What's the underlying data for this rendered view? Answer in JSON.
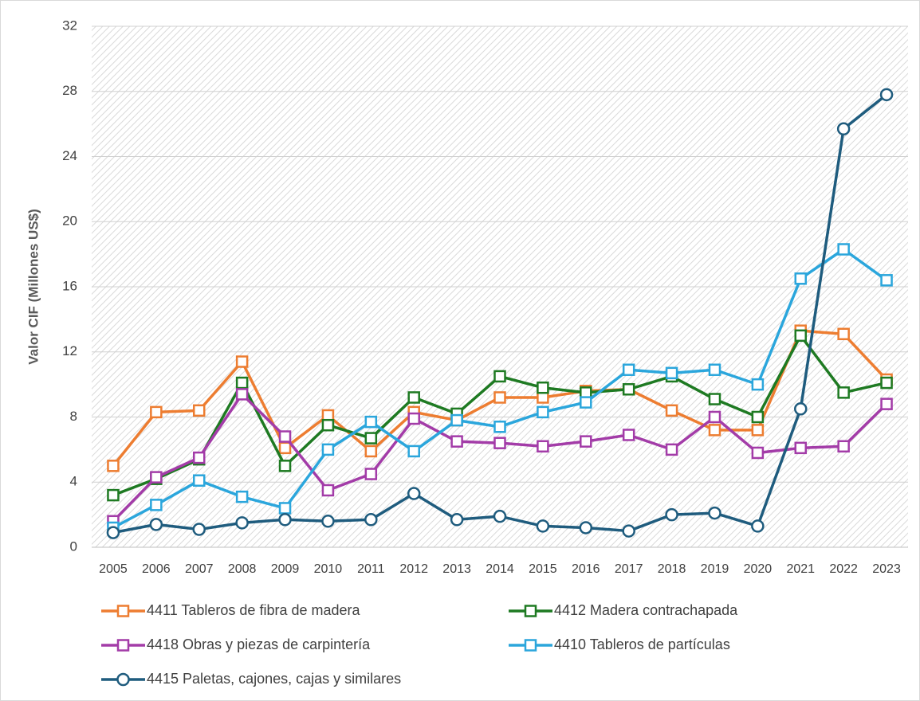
{
  "chart_data": {
    "type": "line",
    "y_axis_label": "Valor CIF (Millones US$)",
    "categories": [
      "2005",
      "2006",
      "2007",
      "2008",
      "2009",
      "2010",
      "2011",
      "2012",
      "2013",
      "2014",
      "2015",
      "2016",
      "2017",
      "2018",
      "2019",
      "2020",
      "2021",
      "2022",
      "2023"
    ],
    "ylim": [
      0,
      32
    ],
    "yticks": [
      0,
      4,
      8,
      12,
      16,
      20,
      24,
      28,
      32
    ],
    "grid": true,
    "series": [
      {
        "name": "4411 Tableros de fibra de madera",
        "color": "#ed7d31",
        "marker": "square",
        "values": [
          5.0,
          8.3,
          8.4,
          11.4,
          6.1,
          8.1,
          5.9,
          8.3,
          7.8,
          9.2,
          9.2,
          9.6,
          9.7,
          8.4,
          7.2,
          7.2,
          13.3,
          13.1,
          10.3
        ]
      },
      {
        "name": "4412 Madera contrachapada",
        "color": "#1e7a22",
        "marker": "square",
        "values": [
          3.2,
          4.2,
          5.4,
          10.1,
          5.0,
          7.5,
          6.7,
          9.2,
          8.2,
          10.5,
          9.8,
          9.5,
          9.7,
          10.5,
          9.1,
          8.0,
          13.0,
          9.5,
          10.1
        ]
      },
      {
        "name": "4418 Obras y piezas de carpintería",
        "color": "#a33ca8",
        "marker": "square",
        "values": [
          1.6,
          4.3,
          5.5,
          9.4,
          6.8,
          3.5,
          4.5,
          7.9,
          6.5,
          6.4,
          6.2,
          6.5,
          6.9,
          6.0,
          8.0,
          5.8,
          6.1,
          6.2,
          8.8
        ]
      },
      {
        "name": "4410 Tableros de partículas",
        "color": "#2ba6dc",
        "marker": "square",
        "values": [
          1.2,
          2.6,
          4.1,
          3.1,
          2.4,
          6.0,
          7.7,
          5.9,
          7.8,
          7.4,
          8.3,
          8.9,
          10.9,
          10.7,
          10.9,
          10.0,
          16.5,
          18.3,
          16.4
        ]
      },
      {
        "name": "4415 Paletas, cajones, cajas y similares",
        "color": "#1f5c7e",
        "marker": "circle",
        "values": [
          0.9,
          1.4,
          1.1,
          1.5,
          1.7,
          1.6,
          1.7,
          3.3,
          1.7,
          1.9,
          1.3,
          1.2,
          1.0,
          2.0,
          2.1,
          1.3,
          8.5,
          25.7,
          27.8
        ]
      }
    ]
  }
}
